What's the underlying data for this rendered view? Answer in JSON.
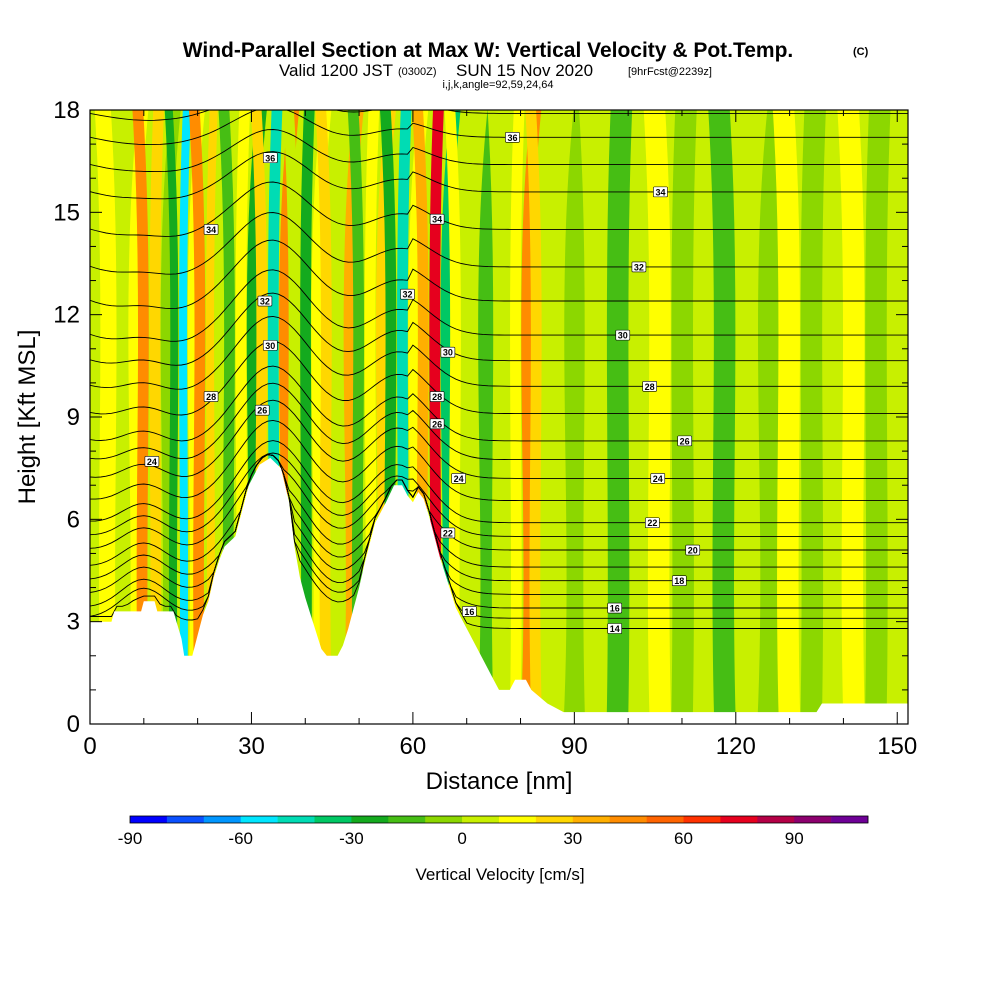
{
  "chart_data": {
    "type": "heatmap",
    "title": "Wind-Parallel Section at Max W: Vertical Velocity & Pot.Temp.",
    "title_suffix": "(C)",
    "subtitle": {
      "valid": "Valid 1200 JST",
      "utc": "(0300Z)",
      "date": "SUN 15 Nov 2020",
      "fcst": "[9hrFcst@2239z]",
      "section": "i,j,k,angle=92,59,24,64"
    },
    "xlabel": "Distance [nm]",
    "ylabel": "Height [Kft MSL]",
    "xlim": [
      0,
      152
    ],
    "ylim": [
      0,
      18
    ],
    "x_ticks": [
      "0",
      "30",
      "60",
      "90",
      "120",
      "150"
    ],
    "y_ticks": [
      "0",
      "3",
      "6",
      "9",
      "12",
      "15",
      "18"
    ],
    "colorbar": {
      "title": "Vertical Velocity [cm/s]",
      "range": [
        -90,
        110
      ],
      "interval": 10,
      "labels": [
        "-90",
        "-60",
        "-30",
        "0",
        "30",
        "60",
        "90"
      ],
      "colors": [
        "#0000ff",
        "#0a50ff",
        "#0096ff",
        "#00e6ff",
        "#00dcb4",
        "#00c864",
        "#14aa1e",
        "#46be14",
        "#8cd700",
        "#c8f000",
        "#ffff00",
        "#ffd700",
        "#ffaf00",
        "#ff8c00",
        "#ff6400",
        "#ff3200",
        "#e6001e",
        "#b40046",
        "#8c006e",
        "#6e0096"
      ]
    },
    "contour_variable": "Potential Temperature (C)",
    "contour_labels": [
      {
        "text": "36",
        "x": 33.5,
        "y": 16.6
      },
      {
        "text": "36",
        "x": 78.5,
        "y": 17.2
      },
      {
        "text": "34",
        "x": 22.5,
        "y": 14.5
      },
      {
        "text": "34",
        "x": 106,
        "y": 15.6
      },
      {
        "text": "34",
        "x": 64.5,
        "y": 14.8
      },
      {
        "text": "32",
        "x": 102,
        "y": 13.4
      },
      {
        "text": "32",
        "x": 32.5,
        "y": 12.4
      },
      {
        "text": "32",
        "x": 59,
        "y": 12.6
      },
      {
        "text": "30",
        "x": 99,
        "y": 11.4
      },
      {
        "text": "30",
        "x": 33.5,
        "y": 11.1
      },
      {
        "text": "30",
        "x": 66.5,
        "y": 10.9
      },
      {
        "text": "28",
        "x": 104,
        "y": 9.9
      },
      {
        "text": "28",
        "x": 22.5,
        "y": 9.6
      },
      {
        "text": "28",
        "x": 64.5,
        "y": 9.6
      },
      {
        "text": "26",
        "x": 32,
        "y": 9.2
      },
      {
        "text": "26",
        "x": 64.5,
        "y": 8.8
      },
      {
        "text": "26",
        "x": 110.5,
        "y": 8.3
      },
      {
        "text": "24",
        "x": 11.5,
        "y": 7.7
      },
      {
        "text": "24",
        "x": 68.5,
        "y": 7.2
      },
      {
        "text": "24",
        "x": 105.5,
        "y": 7.2
      },
      {
        "text": "22",
        "x": 66.5,
        "y": 5.6
      },
      {
        "text": "22",
        "x": 104.5,
        "y": 5.9
      },
      {
        "text": "20",
        "x": 112,
        "y": 5.1
      },
      {
        "text": "18",
        "x": 109.5,
        "y": 4.2
      },
      {
        "text": "16",
        "x": 97.5,
        "y": 3.4
      },
      {
        "text": "16",
        "x": 70.5,
        "y": 3.3
      },
      {
        "text": "14",
        "x": 97.5,
        "y": 2.8
      }
    ],
    "contours": [
      {
        "level": 14,
        "y_far": 2.8
      },
      {
        "level": 15,
        "y_far": 3.1
      },
      {
        "level": 16,
        "y_far": 3.4
      },
      {
        "level": 17,
        "y_far": 3.8
      },
      {
        "level": 18,
        "y_far": 4.2
      },
      {
        "level": 19,
        "y_far": 4.6
      },
      {
        "level": 20,
        "y_far": 5.1
      },
      {
        "level": 21,
        "y_far": 5.5
      },
      {
        "level": 22,
        "y_far": 5.9
      },
      {
        "level": 23,
        "y_far": 6.55
      },
      {
        "level": 24,
        "y_far": 7.2
      },
      {
        "level": 25,
        "y_far": 7.75
      },
      {
        "level": 26,
        "y_far": 8.3
      },
      {
        "level": 27,
        "y_far": 9.1
      },
      {
        "level": 28,
        "y_far": 9.9
      },
      {
        "level": 29,
        "y_far": 10.65
      },
      {
        "level": 30,
        "y_far": 11.4
      },
      {
        "level": 31,
        "y_far": 12.4
      },
      {
        "level": 32,
        "y_far": 13.4
      },
      {
        "level": 33,
        "y_far": 14.5
      },
      {
        "level": 34,
        "y_far": 15.6
      },
      {
        "level": 35,
        "y_far": 16.4
      },
      {
        "level": 36,
        "y_far": 17.2
      },
      {
        "level": 37,
        "y_far": 17.9
      }
    ],
    "terrain": [
      [
        0,
        3.0
      ],
      [
        4,
        3.0
      ],
      [
        4.5,
        3.3
      ],
      [
        9.5,
        3.3
      ],
      [
        10,
        3.6
      ],
      [
        12,
        3.6
      ],
      [
        12.5,
        3.3
      ],
      [
        15.5,
        3.3
      ],
      [
        17,
        2.5
      ],
      [
        17.5,
        2.0
      ],
      [
        19,
        2.0
      ],
      [
        20,
        2.6
      ],
      [
        21,
        3.2
      ],
      [
        22,
        3.6
      ],
      [
        23,
        4.3
      ],
      [
        24,
        4.8
      ],
      [
        25,
        5.2
      ],
      [
        27,
        5.5
      ],
      [
        28.5,
        6.4
      ],
      [
        29.5,
        7.0
      ],
      [
        31.5,
        7.6
      ],
      [
        33.5,
        7.8
      ],
      [
        35.5,
        7.5
      ],
      [
        37,
        6.5
      ],
      [
        38,
        5.2
      ],
      [
        39,
        4.3
      ],
      [
        40,
        3.7
      ],
      [
        41,
        3.2
      ],
      [
        42,
        2.7
      ],
      [
        43,
        2.2
      ],
      [
        44,
        2.0
      ],
      [
        46,
        2.0
      ],
      [
        47,
        2.3
      ],
      [
        48,
        2.8
      ],
      [
        49,
        3.4
      ],
      [
        50,
        4.0
      ],
      [
        51,
        4.7
      ],
      [
        52,
        5.3
      ],
      [
        53,
        5.9
      ],
      [
        55,
        6.5
      ],
      [
        56.5,
        7.0
      ],
      [
        58,
        7.0
      ],
      [
        59,
        6.7
      ],
      [
        60,
        6.5
      ],
      [
        61,
        6.8
      ],
      [
        62,
        6.6
      ],
      [
        63,
        6.1
      ],
      [
        64,
        5.5
      ],
      [
        65,
        4.9
      ],
      [
        66,
        4.4
      ],
      [
        67,
        3.9
      ],
      [
        68,
        3.4
      ],
      [
        69,
        3.1
      ],
      [
        70,
        2.8
      ],
      [
        71,
        2.5
      ],
      [
        72,
        2.2
      ],
      [
        73,
        1.9
      ],
      [
        74,
        1.6
      ],
      [
        75,
        1.3
      ],
      [
        76,
        1.0
      ],
      [
        78,
        1.0
      ],
      [
        79,
        1.3
      ],
      [
        81,
        1.3
      ],
      [
        82,
        1.0
      ],
      [
        85,
        0.6
      ],
      [
        88,
        0.35
      ],
      [
        90,
        0.35
      ],
      [
        135,
        0.35
      ],
      [
        136,
        0.6
      ],
      [
        152,
        0.6
      ]
    ],
    "field_bands": [
      {
        "x0": 0,
        "x1": 2,
        "v": 5
      },
      {
        "x0": 2,
        "x1": 5,
        "v": 15
      },
      {
        "x0": 5,
        "x1": 7,
        "v": 5
      },
      {
        "x0": 7,
        "x1": 9,
        "v": 15
      },
      {
        "x0": 9,
        "x1": 11,
        "v": 45
      },
      {
        "x0": 11,
        "x1": 13,
        "v": 25
      },
      {
        "x0": 13,
        "x1": 15,
        "v": -5
      },
      {
        "x0": 15,
        "x1": 16.5,
        "v": -25
      },
      {
        "x0": 16.5,
        "x1": 18,
        "v": -55
      },
      {
        "x0": 18,
        "x1": 19.5,
        "v": 15
      },
      {
        "x0": 19.5,
        "x1": 21.5,
        "v": 45
      },
      {
        "x0": 21.5,
        "x1": 23,
        "v": 25
      },
      {
        "x0": 23,
        "x1": 25,
        "v": 5
      },
      {
        "x0": 25,
        "x1": 27,
        "v": -15
      },
      {
        "x0": 27,
        "x1": 29,
        "v": 15
      },
      {
        "x0": 29,
        "x1": 31,
        "v": -25
      },
      {
        "x0": 31,
        "x1": 33,
        "v": 25
      },
      {
        "x0": 33,
        "x1": 35,
        "v": -45
      },
      {
        "x0": 35,
        "x1": 37,
        "v": 45
      },
      {
        "x0": 37,
        "x1": 39,
        "v": 5
      },
      {
        "x0": 39,
        "x1": 41,
        "v": -25
      },
      {
        "x0": 41,
        "x1": 43,
        "v": 15
      },
      {
        "x0": 43,
        "x1": 45,
        "v": 25
      },
      {
        "x0": 45,
        "x1": 47,
        "v": 5
      },
      {
        "x0": 47,
        "x1": 49,
        "v": 35
      },
      {
        "x0": 49,
        "x1": 51,
        "v": -15
      },
      {
        "x0": 51,
        "x1": 53,
        "v": 15
      },
      {
        "x0": 53,
        "x1": 55,
        "v": 25
      },
      {
        "x0": 55,
        "x1": 57,
        "v": -25
      },
      {
        "x0": 57,
        "x1": 59,
        "v": -45
      },
      {
        "x0": 59,
        "x1": 61,
        "v": 15
      },
      {
        "x0": 61,
        "x1": 63,
        "v": 35
      },
      {
        "x0": 63,
        "x1": 65,
        "v": 75
      },
      {
        "x0": 65,
        "x1": 67,
        "v": -35
      },
      {
        "x0": 67,
        "x1": 69,
        "v": 15
      },
      {
        "x0": 69,
        "x1": 72,
        "v": 5
      },
      {
        "x0": 72,
        "x1": 75,
        "v": -15
      },
      {
        "x0": 75,
        "x1": 78,
        "v": 5
      },
      {
        "x0": 78,
        "x1": 80,
        "v": 15
      },
      {
        "x0": 80,
        "x1": 82,
        "v": 45
      },
      {
        "x0": 82,
        "x1": 84,
        "v": 25
      },
      {
        "x0": 84,
        "x1": 88,
        "v": 5
      },
      {
        "x0": 88,
        "x1": 92,
        "v": -5
      },
      {
        "x0": 92,
        "x1": 96,
        "v": 5
      },
      {
        "x0": 96,
        "x1": 100,
        "v": -15
      },
      {
        "x0": 100,
        "x1": 104,
        "v": 5
      },
      {
        "x0": 104,
        "x1": 108,
        "v": 15
      },
      {
        "x0": 108,
        "x1": 112,
        "v": -5
      },
      {
        "x0": 112,
        "x1": 116,
        "v": 5
      },
      {
        "x0": 116,
        "x1": 120,
        "v": -15
      },
      {
        "x0": 120,
        "x1": 124,
        "v": 5
      },
      {
        "x0": 124,
        "x1": 128,
        "v": -5
      },
      {
        "x0": 128,
        "x1": 132,
        "v": 15
      },
      {
        "x0": 132,
        "x1": 136,
        "v": -5
      },
      {
        "x0": 136,
        "x1": 140,
        "v": 5
      },
      {
        "x0": 140,
        "x1": 144,
        "v": 15
      },
      {
        "x0": 144,
        "x1": 148,
        "v": -5
      },
      {
        "x0": 148,
        "x1": 152,
        "v": 5
      }
    ]
  }
}
